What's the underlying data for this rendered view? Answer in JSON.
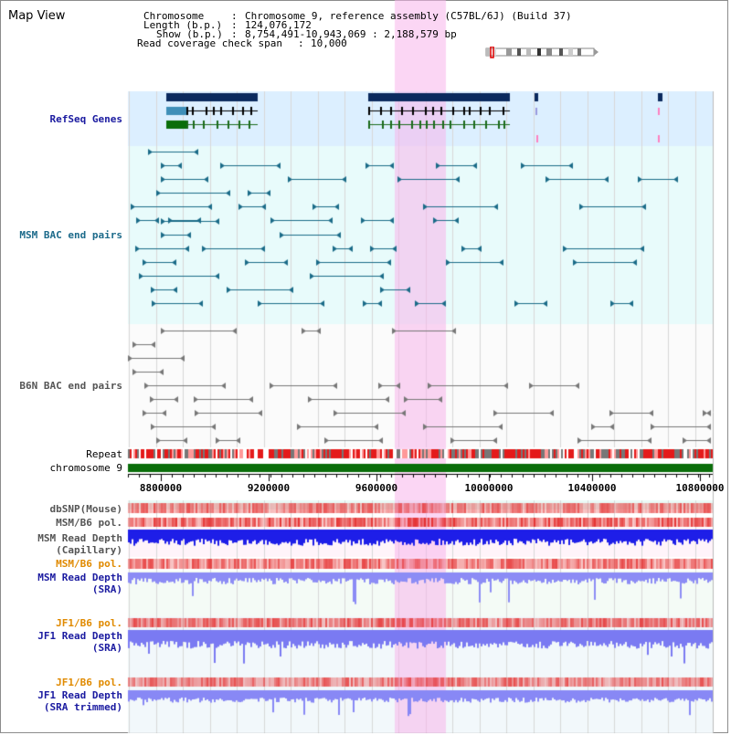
{
  "title": "Map View",
  "header": {
    "chromosome_key": "Chromosome",
    "chromosome_val": "Chromosome 9, reference assembly (C57BL/6J) (Build 37)",
    "length_key": "Length (b.p.)",
    "length_val": "124,076,172",
    "show_key": "Show (b.p.)",
    "show_val": "8,754,491-10,943,069 : 2,188,579 bp",
    "coverage_key": "Read coverage check span",
    "coverage_val": "10,000"
  },
  "tracks": {
    "refseq": "RefSeq Genes",
    "msm_bac": "MSM BAC end pairs",
    "b6n_bac": "B6N BAC end pairs",
    "repeat": "Repeat",
    "chromosome": "chromosome 9",
    "dbsnp": "dbSNP(Mouse)",
    "msm_b6_pol_1": "MSM/B6 pol.",
    "msm_depth_cap_1": "MSM Read Depth",
    "msm_depth_cap_2": "(Capillary)",
    "msm_b6_pol_2": "MSM/B6 pol.",
    "msm_depth_sra_1": "MSM Read Depth",
    "msm_depth_sra_2": "(SRA)",
    "jf1_b6_pol_1": "JF1/B6 pol.",
    "jf1_depth_sra_1": "JF1 Read Depth",
    "jf1_depth_sra_2": "(SRA)",
    "jf1_b6_pol_2": "JF1/B6 pol.",
    "jf1_depth_trim_1": "JF1 Read Depth",
    "jf1_depth_trim_2": "(SRA trimmed)"
  },
  "axis": {
    "ticks": [
      "8800000",
      "9200000",
      "9600000",
      "10000000",
      "10400000",
      "10800000"
    ]
  },
  "colors": {
    "highlight": "#f7d4f0",
    "refseq_bg": "#dcefff",
    "track_bg": "#e8fbfb",
    "gene_dark": "#0b2a5e",
    "bac_teal": "#1a6b88",
    "bac_gray": "#777777",
    "chrom_green": "#0a6e0a",
    "snp_red": "#e84040",
    "depth_blue": "#2020e0"
  }
}
